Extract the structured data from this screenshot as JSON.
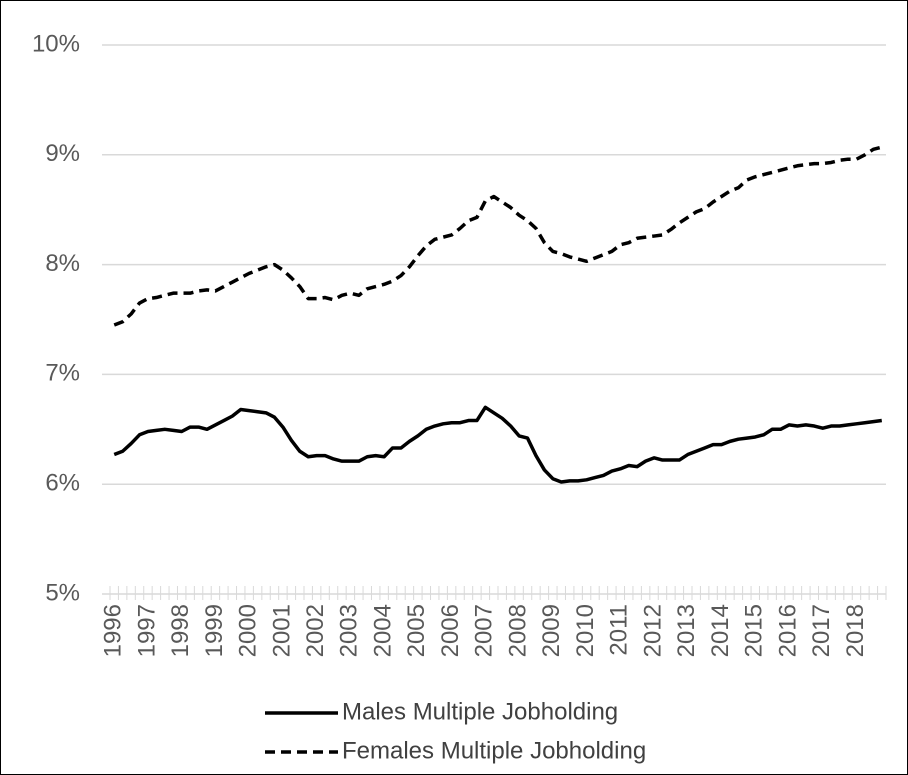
{
  "chart_data": {
    "type": "line",
    "categories": [
      "1996",
      null,
      null,
      null,
      "1997",
      null,
      null,
      null,
      "1998",
      null,
      null,
      null,
      "1999",
      null,
      null,
      null,
      "2000",
      null,
      null,
      null,
      "2001",
      null,
      null,
      null,
      "2002",
      null,
      null,
      null,
      "2003",
      null,
      null,
      null,
      "2004",
      null,
      null,
      null,
      "2005",
      null,
      null,
      null,
      "2006",
      null,
      null,
      null,
      "2007",
      null,
      null,
      null,
      "2008",
      null,
      null,
      null,
      "2009",
      null,
      null,
      null,
      "2010",
      null,
      null,
      null,
      "2011",
      null,
      null,
      null,
      "2012",
      null,
      null,
      null,
      "2013",
      null,
      null,
      null,
      "2014",
      null,
      null,
      null,
      "2015",
      null,
      null,
      null,
      "2016",
      null,
      null,
      null,
      "2017",
      null,
      null,
      null,
      "2018",
      null,
      null,
      null
    ],
    "series": [
      {
        "name": "Males Multiple Jobholding",
        "color": "#000000",
        "dash": "solid",
        "values": [
          6.27,
          6.3,
          6.37,
          6.45,
          6.48,
          6.49,
          6.5,
          6.49,
          6.48,
          6.52,
          6.52,
          6.5,
          6.54,
          6.58,
          6.62,
          6.68,
          6.67,
          6.66,
          6.65,
          6.61,
          6.52,
          6.4,
          6.3,
          6.25,
          6.26,
          6.26,
          6.23,
          6.21,
          6.21,
          6.21,
          6.25,
          6.26,
          6.25,
          6.33,
          6.33,
          6.39,
          6.44,
          6.5,
          6.53,
          6.55,
          6.56,
          6.56,
          6.58,
          6.58,
          6.7,
          6.65,
          6.6,
          6.53,
          6.44,
          6.42,
          6.26,
          6.13,
          6.05,
          6.02,
          6.03,
          6.03,
          6.04,
          6.06,
          6.08,
          6.12,
          6.14,
          6.17,
          6.16,
          6.21,
          6.24,
          6.22,
          6.22,
          6.22,
          6.27,
          6.3,
          6.33,
          6.36,
          6.36,
          6.39,
          6.41,
          6.42,
          6.43,
          6.45,
          6.5,
          6.5,
          6.54,
          6.53,
          6.54,
          6.53,
          6.51,
          6.53,
          6.53,
          6.54,
          6.55,
          6.56,
          6.57,
          6.58
        ]
      },
      {
        "name": "Females Multiple Jobholding",
        "color": "#000000",
        "dash": "dashed",
        "values": [
          7.45,
          7.48,
          7.55,
          7.65,
          7.69,
          7.7,
          7.72,
          7.74,
          7.74,
          7.74,
          7.76,
          7.77,
          7.76,
          7.8,
          7.84,
          7.88,
          7.92,
          7.95,
          7.98,
          8.0,
          7.95,
          7.88,
          7.8,
          7.69,
          7.69,
          7.7,
          7.68,
          7.72,
          7.74,
          7.72,
          7.78,
          7.8,
          7.82,
          7.85,
          7.9,
          7.98,
          8.08,
          8.17,
          8.23,
          8.25,
          8.27,
          8.33,
          8.4,
          8.43,
          8.58,
          8.62,
          8.57,
          8.52,
          8.45,
          8.4,
          8.33,
          8.2,
          8.12,
          8.1,
          8.07,
          8.05,
          8.03,
          8.06,
          8.09,
          8.12,
          8.18,
          8.2,
          8.24,
          8.25,
          8.26,
          8.27,
          8.32,
          8.38,
          8.43,
          8.48,
          8.51,
          8.57,
          8.62,
          8.67,
          8.7,
          8.77,
          8.8,
          8.82,
          8.84,
          8.86,
          8.88,
          8.9,
          8.91,
          8.92,
          8.92,
          8.93,
          8.95,
          8.96,
          8.96,
          9.0,
          9.05,
          9.07
        ]
      }
    ],
    "ylim": [
      5,
      10
    ],
    "yticks": [
      {
        "value": 5,
        "label": "5%"
      },
      {
        "value": 6,
        "label": "6%"
      },
      {
        "value": 7,
        "label": "7%"
      },
      {
        "value": 8,
        "label": "8%"
      },
      {
        "value": 9,
        "label": "9%"
      },
      {
        "value": 10,
        "label": "10%"
      }
    ],
    "grid": true
  }
}
